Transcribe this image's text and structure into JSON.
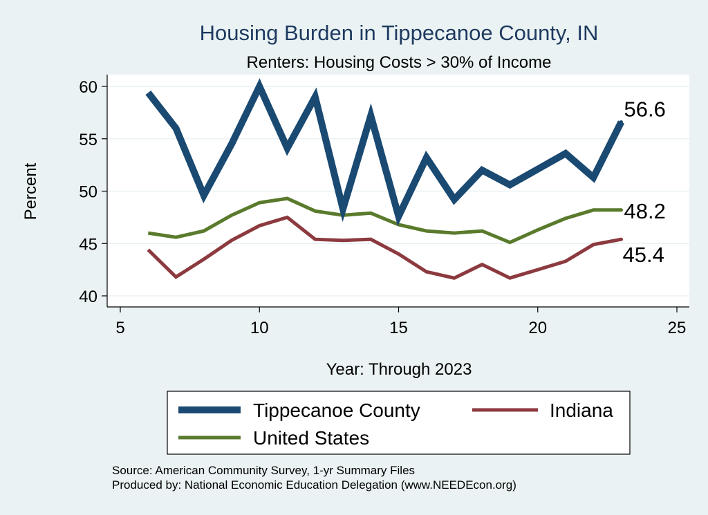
{
  "chart_data": {
    "type": "line",
    "title": "Housing Burden in Tippecanoe County, IN",
    "subtitle": "Renters: Housing Costs > 30% of Income",
    "xlabel": "Year: Through 2023",
    "ylabel": "Percent",
    "xlim": [
      5,
      25
    ],
    "ylim": [
      40,
      60
    ],
    "xticks": [
      5,
      10,
      15,
      20,
      25
    ],
    "yticks": [
      40,
      45,
      50,
      55,
      60
    ],
    "x": [
      6,
      7,
      8,
      9,
      10,
      11,
      12,
      13,
      14,
      15,
      16,
      17,
      18,
      19,
      20,
      21,
      22,
      23
    ],
    "series": [
      {
        "name": "Tippecanoe County",
        "color": "#1a4a72",
        "values": [
          59.4,
          56.0,
          49.6,
          54.5,
          60.0,
          54.1,
          59.0,
          48.3,
          57.2,
          47.6,
          53.2,
          49.2,
          52.0,
          50.6,
          52.1,
          53.6,
          51.3,
          56.6
        ],
        "end_label": "56.6"
      },
      {
        "name": "Indiana",
        "color": "#8c3a3f",
        "values": [
          44.4,
          41.8,
          43.5,
          45.3,
          46.7,
          47.5,
          45.4,
          45.3,
          45.4,
          44.0,
          42.3,
          41.7,
          43.0,
          41.7,
          42.5,
          43.3,
          44.9,
          45.4
        ],
        "end_label": "45.4"
      },
      {
        "name": "United States",
        "color": "#5a7a2c",
        "values": [
          46.0,
          45.6,
          46.2,
          47.7,
          48.9,
          49.3,
          48.1,
          47.7,
          47.9,
          46.8,
          46.2,
          46.0,
          46.2,
          45.1,
          46.3,
          47.4,
          48.2,
          48.2
        ],
        "end_label": "48.2"
      }
    ],
    "legend": {
      "placement": "bottom",
      "items": [
        "Tippecanoe County",
        "Indiana",
        "United States"
      ]
    },
    "notes": [
      "Source: American Community Survey, 1-yr Summary Files",
      "Produced by: National Economic Education Delegation (www.NEEDEcon.org)"
    ]
  }
}
